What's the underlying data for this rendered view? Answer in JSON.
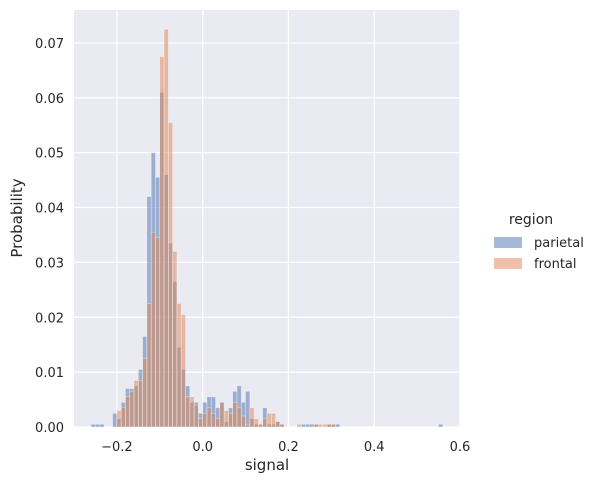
{
  "chart_data": {
    "type": "bar",
    "style": "seaborn-darkgrid-histogram",
    "xlabel": "signal",
    "ylabel": "Probability",
    "xlim": [
      -0.3,
      0.6
    ],
    "ylim": [
      0,
      0.076
    ],
    "x_ticks": [
      -0.2,
      0.0,
      0.2,
      0.4,
      0.6
    ],
    "x_tick_labels": [
      "−0.2",
      "0.0",
      "0.2",
      "0.4",
      "0.6"
    ],
    "y_ticks": [
      0,
      0.01,
      0.02,
      0.03,
      0.04,
      0.05,
      0.06,
      0.07
    ],
    "y_tick_labels": [
      "0.00",
      "0.01",
      "0.02",
      "0.03",
      "0.04",
      "0.05",
      "0.06",
      "0.07"
    ],
    "grid": true,
    "legend": {
      "title": "region",
      "placement": "outside-right"
    },
    "bin_start": -0.26,
    "bin_width": 0.01,
    "series": [
      {
        "name": "parietal",
        "color": "#4c72b0",
        "values": [
          0.0005,
          0.0005,
          0.0005,
          0,
          0,
          0.0025,
          0.0015,
          0.0045,
          0.007,
          0.007,
          0.0075,
          0.0105,
          0.0165,
          0.042,
          0.05,
          0.0455,
          0.061,
          0.046,
          0.0335,
          0.0265,
          0.0145,
          0.0105,
          0.0075,
          0.0045,
          0.0045,
          0.0025,
          0.0045,
          0.0055,
          0.0055,
          0.0035,
          0.0045,
          0.001,
          0.0035,
          0.0065,
          0.0075,
          0.0045,
          0.0065,
          0.0015,
          0.0005,
          0.0005,
          0.0035,
          0.0005,
          0.0005,
          0.001,
          0.0005,
          0,
          0,
          0,
          0,
          0.0005,
          0.0005,
          0.0005,
          0.0005,
          0,
          0,
          0.0005,
          0.0005,
          0.0005,
          0,
          0,
          0,
          0,
          0,
          0,
          0,
          0,
          0,
          0,
          0,
          0,
          0,
          0,
          0,
          0,
          0,
          0,
          0,
          0,
          0,
          0,
          0,
          0.0005
        ]
      },
      {
        "name": "frontal",
        "color": "#dd8452",
        "values": [
          0,
          0,
          0,
          0,
          0,
          0,
          0.003,
          0.0035,
          0.0055,
          0.0065,
          0.0085,
          0.0085,
          0.0125,
          0.0225,
          0.0355,
          0.0345,
          0.0675,
          0.0725,
          0.0555,
          0.032,
          0.0225,
          0.0205,
          0.0055,
          0.0055,
          0.004,
          0.0015,
          0.0025,
          0.0035,
          0.0025,
          0.0015,
          0.0045,
          0.003,
          0.0025,
          0.0045,
          0.0035,
          0.002,
          0.0005,
          0.0035,
          0.0015,
          0.0005,
          0.0015,
          0.0025,
          0.0025,
          0.001,
          0.0005,
          0,
          0,
          0,
          0.0005,
          0,
          0,
          0,
          0.0005,
          0.0005,
          0.0005,
          0.0005,
          0.0005,
          0,
          0,
          0,
          0,
          0,
          0,
          0,
          0,
          0,
          0,
          0,
          0,
          0,
          0,
          0,
          0,
          0,
          0,
          0,
          0,
          0,
          0,
          0,
          0,
          0
        ]
      }
    ]
  }
}
